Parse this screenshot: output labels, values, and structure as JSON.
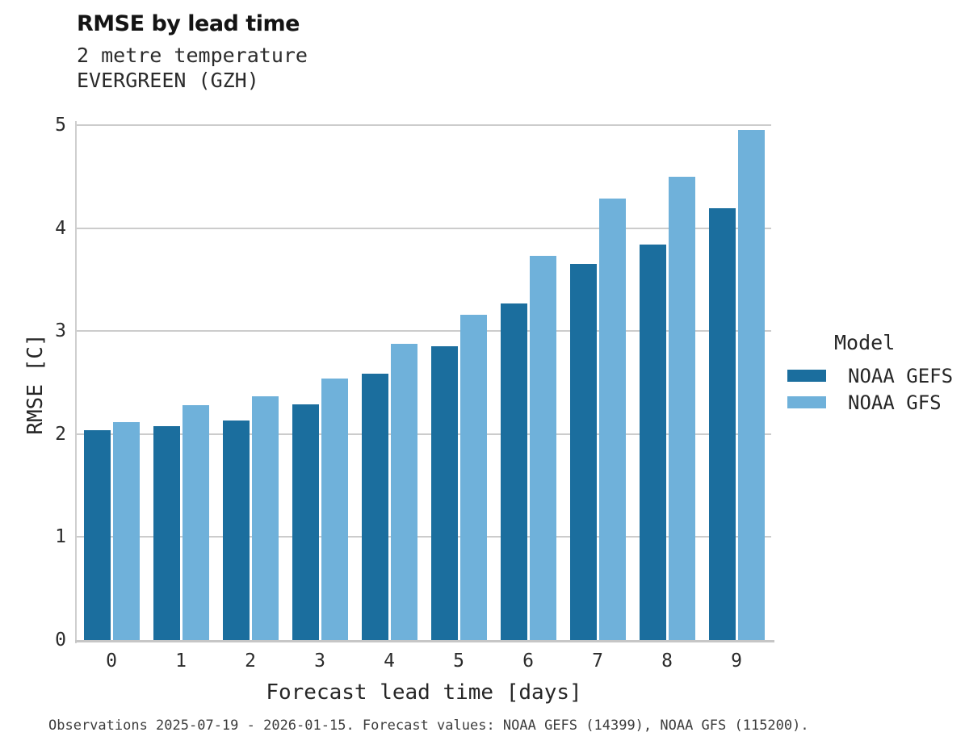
{
  "header": {
    "title": "RMSE by lead time",
    "subtitle_line1": "2 metre temperature",
    "subtitle_line2": "EVERGREEN (GZH)"
  },
  "chart_data": {
    "type": "bar",
    "title": "RMSE by lead time",
    "subtitle": [
      "2 metre temperature",
      "EVERGREEN (GZH)"
    ],
    "categories": [
      "0",
      "1",
      "2",
      "3",
      "4",
      "5",
      "6",
      "7",
      "8",
      "9"
    ],
    "series": [
      {
        "name": "NOAA GEFS",
        "color": "#1b6e9e",
        "values": [
          2.04,
          2.08,
          2.13,
          2.29,
          2.59,
          2.85,
          3.27,
          3.65,
          3.84,
          4.19
        ]
      },
      {
        "name": "NOAA GFS",
        "color": "#6fb1da",
        "values": [
          2.12,
          2.28,
          2.37,
          2.54,
          2.88,
          3.16,
          3.73,
          4.29,
          4.5,
          4.95
        ]
      }
    ],
    "xlabel": "Forecast lead time [days]",
    "ylabel": "RMSE [C]",
    "ylim": [
      0,
      5
    ],
    "yticks": [
      0,
      1,
      2,
      3,
      4,
      5
    ],
    "grid": "horizontal",
    "gridline_color": "#cccccc",
    "legend_position": "right-center"
  },
  "legend": {
    "title": "Model",
    "entries": [
      {
        "label": "NOAA GEFS",
        "color": "#1b6e9e"
      },
      {
        "label": "NOAA GFS",
        "color": "#6fb1da"
      }
    ]
  },
  "footer": {
    "caption": "Observations 2025-07-19 - 2026-01-15. Forecast values: NOAA GEFS (14399), NOAA GFS (115200)."
  }
}
